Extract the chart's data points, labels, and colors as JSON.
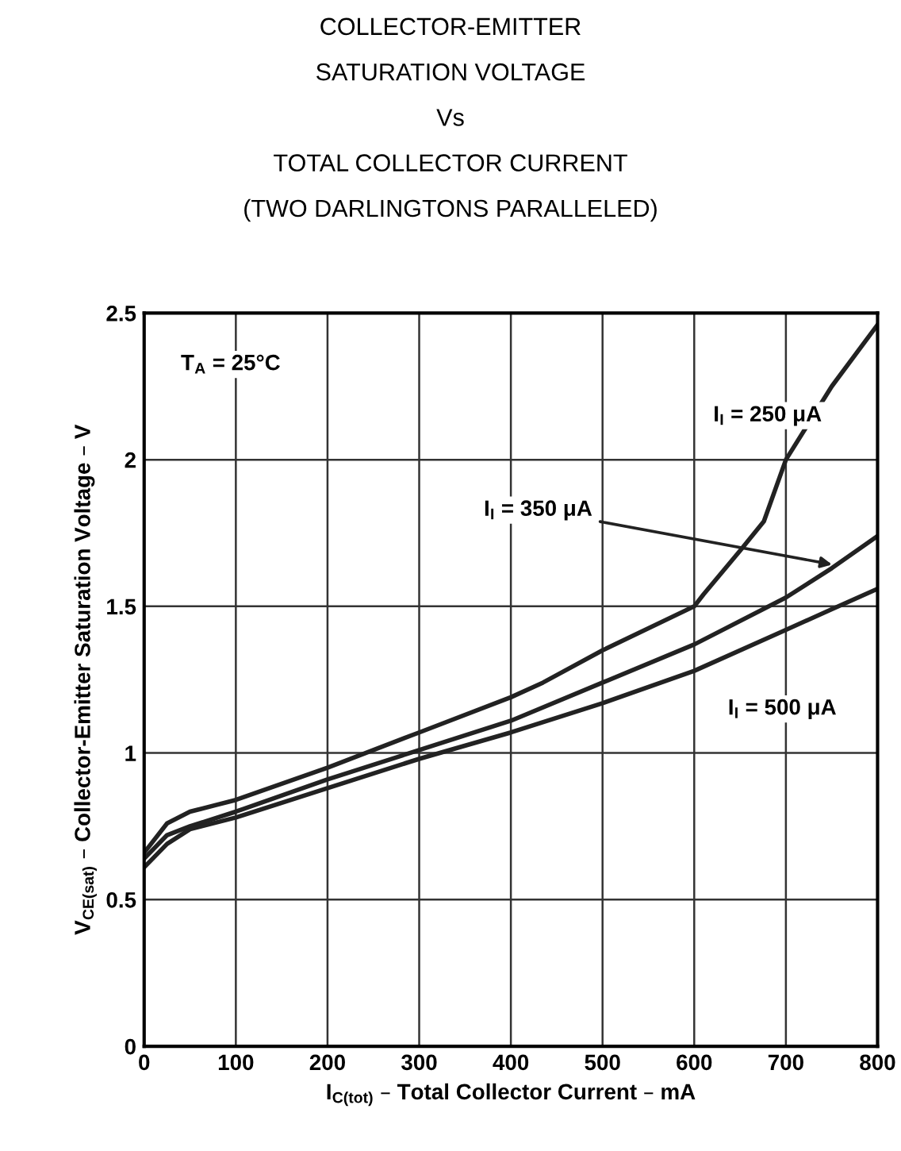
{
  "chart_data": {
    "type": "line",
    "title": "COLLECTOR-EMITTER\nSATURATION VOLTAGE\nVs\nTOTAL COLLECTOR CURRENT\n(TWO DARLINGTONS PARALLELED)",
    "xlabel": "I$_{C(tot)}$ – Total Collector Current – mA",
    "ylabel": "V$_{CE(sat)}$ – Collector-Emitter Saturation Voltage – V",
    "x": [
      0,
      25,
      50,
      100,
      200,
      300,
      400,
      435,
      500,
      600,
      610,
      650,
      676,
      700,
      750,
      800
    ],
    "series": [
      {
        "color": "#222222",
        "values": [
          0.66,
          0.76,
          0.8,
          0.84,
          0.95,
          1.07,
          1.19,
          1.24,
          1.35,
          1.5,
          1.54,
          1.69,
          1.79,
          2.0,
          2.25,
          2.46
        ]
      },
      {
        "color": "#222222",
        "x": [
          0,
          25,
          50,
          100,
          200,
          300,
          400,
          500,
          600,
          700,
          750,
          800
        ],
        "values": [
          0.64,
          0.72,
          0.75,
          0.8,
          0.91,
          1.01,
          1.11,
          1.24,
          1.37,
          1.53,
          1.63,
          1.74
        ]
      },
      {
        "color": "#222222",
        "x": [
          0,
          25,
          50,
          100,
          200,
          300,
          400,
          500,
          600,
          700,
          750,
          800
        ],
        "values": [
          0.61,
          0.69,
          0.74,
          0.78,
          0.88,
          0.98,
          1.07,
          1.17,
          1.28,
          1.42,
          1.49,
          1.56
        ]
      }
    ],
    "annotations": [
      "T$_{A}$ = 25°C",
      "I$_{I}$ = 250 μA",
      {
        "text": "I$_{I}$ = 350 μA",
        "x": 755,
        "y": 1.64
      },
      "I$_{I}$ = 500 μA"
    ],
    "xlim": [
      0,
      800
    ],
    "ylim": [
      0,
      2.5
    ],
    "xticks": [
      0,
      100,
      200,
      300,
      400,
      500,
      600,
      700,
      800
    ],
    "yticks": [
      0,
      0.5,
      1,
      1.5,
      2,
      2.5
    ],
    "grid": true,
    "legend": false,
    "marker": "none",
    "line_style": "solid"
  }
}
